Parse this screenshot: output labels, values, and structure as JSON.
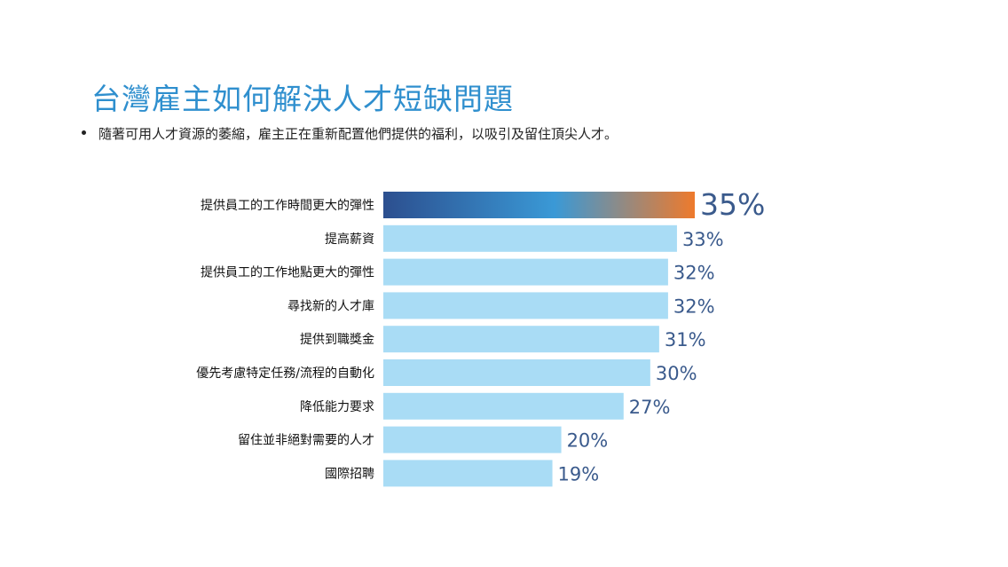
{
  "slide": {
    "title": "台灣雇主如何解決人才短缺問題",
    "bullet": "隨著可用人才資源的萎縮，雇主正在重新配置他們提供的福利，以吸引及留住頂尖人才。"
  },
  "colors": {
    "title": "#2f8fce",
    "bar": "#a9dcf5",
    "highlight_start": "#2c4f8f",
    "highlight_mid": "#3a99d6",
    "highlight_end": "#ee7a2c",
    "value_text": "#3a5a8c",
    "label_text": "#111111"
  },
  "chart_data": {
    "type": "bar",
    "orientation": "horizontal",
    "title": "",
    "xlabel": "",
    "ylabel": "",
    "xlim": [
      0,
      35
    ],
    "grid": false,
    "legend": "none",
    "highlight_index": 0,
    "categories": [
      "提供員工的工作時間更大的彈性",
      "提高薪資",
      "提供員工的工作地點更大的彈性",
      "尋找新的人才庫",
      "提供到職獎金",
      "優先考慮特定任務/流程的自動化",
      "降低能力要求",
      "留住並非絕對需要的人才",
      "國際招聘"
    ],
    "values": [
      35,
      33,
      32,
      32,
      31,
      30,
      27,
      20,
      19
    ],
    "value_labels": [
      "35%",
      "33%",
      "32%",
      "32%",
      "31%",
      "30%",
      "27%",
      "20%",
      "19%"
    ]
  }
}
